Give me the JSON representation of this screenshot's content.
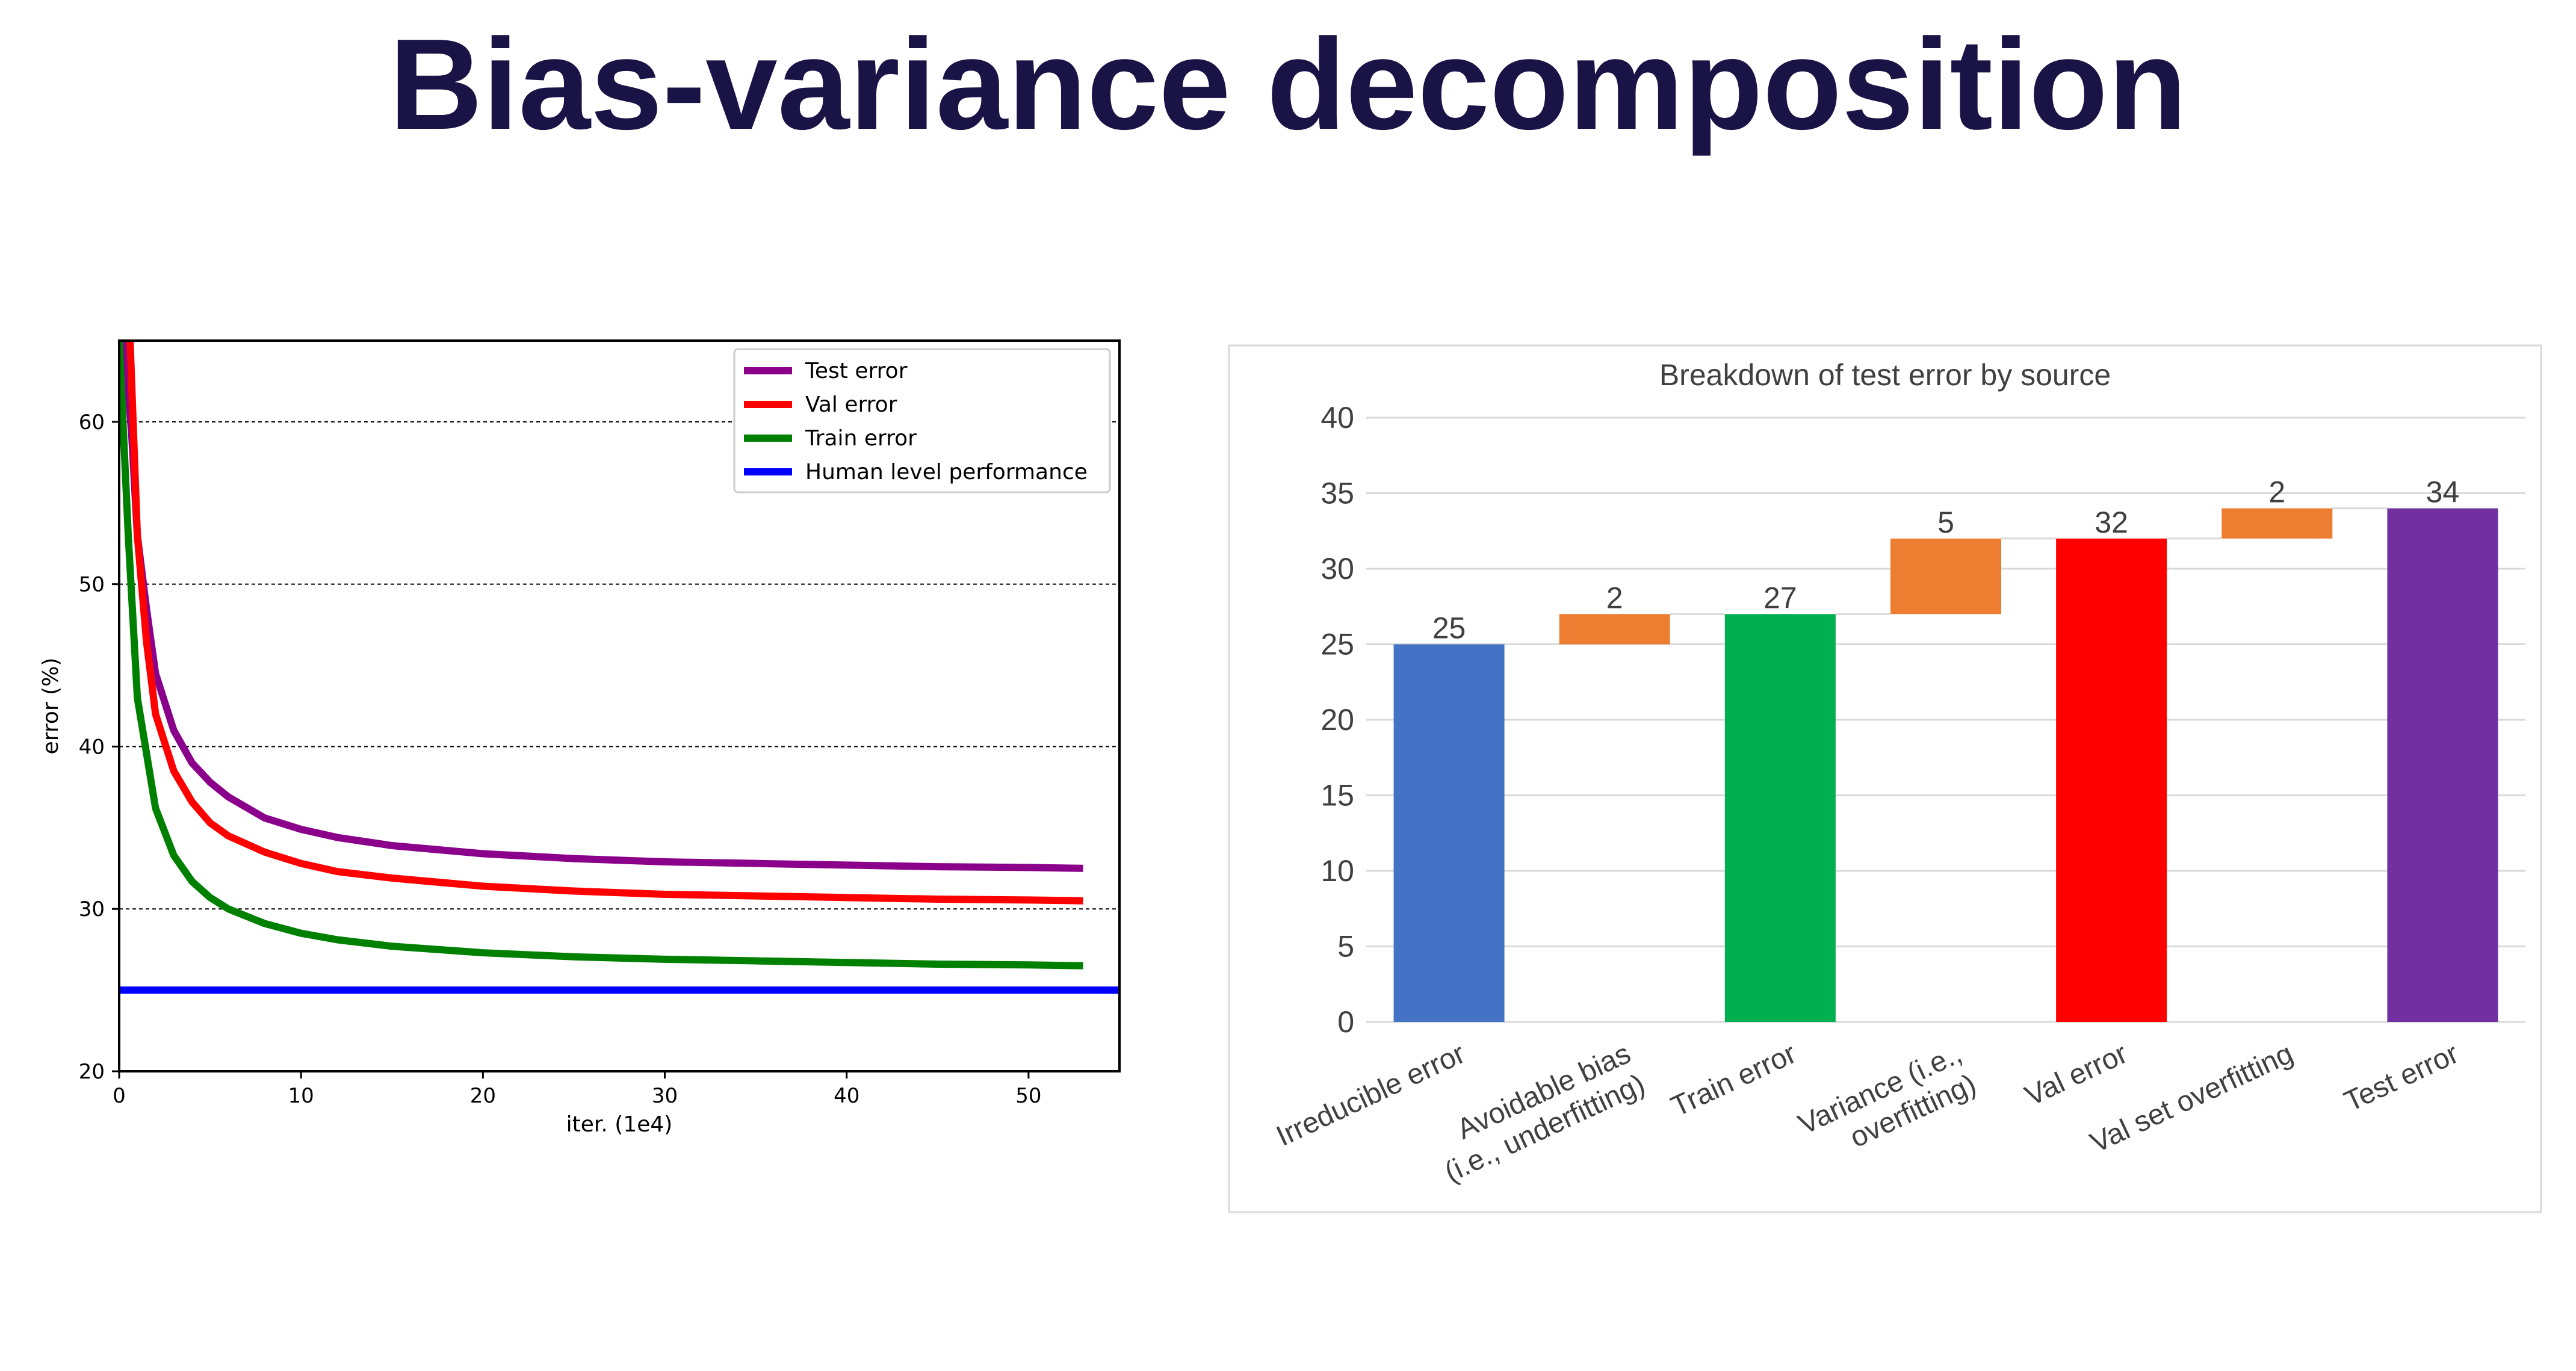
{
  "title": "Bias-variance decomposition",
  "chart_data": [
    {
      "type": "line",
      "xlabel": "iter. (1e4)",
      "ylabel": "error (%)",
      "xlim": [
        0,
        55
      ],
      "ylim": [
        20,
        65
      ],
      "x_ticks": [
        "0",
        "10",
        "20",
        "30",
        "40",
        "50"
      ],
      "y_ticks": [
        "20",
        "30",
        "40",
        "50",
        "60"
      ],
      "grid": "horizontal dashed at 30, 40, 50, 60",
      "legend_position": "top-right",
      "series": [
        {
          "name": "Test error",
          "color": "#8b008b",
          "x": [
            0.3,
            0.7,
            1,
            1.5,
            2,
            3,
            4,
            5,
            6,
            8,
            10,
            12,
            15,
            20,
            25,
            30,
            35,
            40,
            45,
            50,
            53
          ],
          "y": [
            65,
            59,
            53,
            48.5,
            44.5,
            41,
            39,
            37.8,
            36.9,
            35.6,
            34.9,
            34.4,
            33.9,
            33.4,
            33.1,
            32.9,
            32.8,
            32.7,
            32.6,
            32.55,
            32.5
          ]
        },
        {
          "name": "Val error",
          "color": "#ff0000",
          "x": [
            0.6,
            1,
            1.5,
            2,
            3,
            4,
            5,
            6,
            8,
            10,
            12,
            15,
            20,
            25,
            30,
            35,
            40,
            45,
            50,
            53
          ],
          "y": [
            65,
            53,
            46.5,
            42,
            38.5,
            36.6,
            35.3,
            34.5,
            33.5,
            32.8,
            32.3,
            31.9,
            31.4,
            31.1,
            30.9,
            30.8,
            30.7,
            30.6,
            30.55,
            30.5
          ]
        },
        {
          "name": "Train error",
          "color": "#008000",
          "x": [
            0,
            0.5,
            1,
            2,
            3,
            4,
            5,
            6,
            8,
            10,
            12,
            15,
            20,
            25,
            30,
            35,
            40,
            45,
            50,
            53
          ],
          "y": [
            65,
            53,
            43,
            36.2,
            33.3,
            31.7,
            30.7,
            30,
            29.1,
            28.5,
            28.1,
            27.7,
            27.3,
            27.05,
            26.9,
            26.8,
            26.7,
            26.6,
            26.55,
            26.5
          ]
        },
        {
          "name": "Human level performance",
          "color": "#0000ff",
          "x": [
            0,
            55
          ],
          "y": [
            25,
            25
          ]
        }
      ]
    },
    {
      "type": "bar",
      "subtype": "waterfall",
      "title": "Breakdown of test error by source",
      "categories": [
        [
          "Irreducible error"
        ],
        [
          "Avoidable bias",
          "(i.e., underfitting)"
        ],
        [
          "Train error"
        ],
        [
          "Variance (i.e.,",
          "overfitting)"
        ],
        [
          "Val error"
        ],
        [
          "Val set overfitting"
        ],
        [
          "Test error"
        ]
      ],
      "bars": [
        {
          "bottom": 0,
          "top": 25,
          "label": "25",
          "color": "#4472c4"
        },
        {
          "bottom": 25,
          "top": 27,
          "label": "2",
          "color": "#ed7d31"
        },
        {
          "bottom": 0,
          "top": 27,
          "label": "27",
          "color": "#00b050"
        },
        {
          "bottom": 27,
          "top": 32,
          "label": "5",
          "color": "#ed7d31"
        },
        {
          "bottom": 0,
          "top": 32,
          "label": "32",
          "color": "#ff0000"
        },
        {
          "bottom": 32,
          "top": 34,
          "label": "2",
          "color": "#ed7d31"
        },
        {
          "bottom": 0,
          "top": 34,
          "label": "34",
          "color": "#7030a0"
        }
      ],
      "ylim": [
        0,
        40
      ],
      "y_ticks": [
        "0",
        "5",
        "10",
        "15",
        "20",
        "25",
        "30",
        "35",
        "40"
      ],
      "grid": "horizontal"
    }
  ]
}
